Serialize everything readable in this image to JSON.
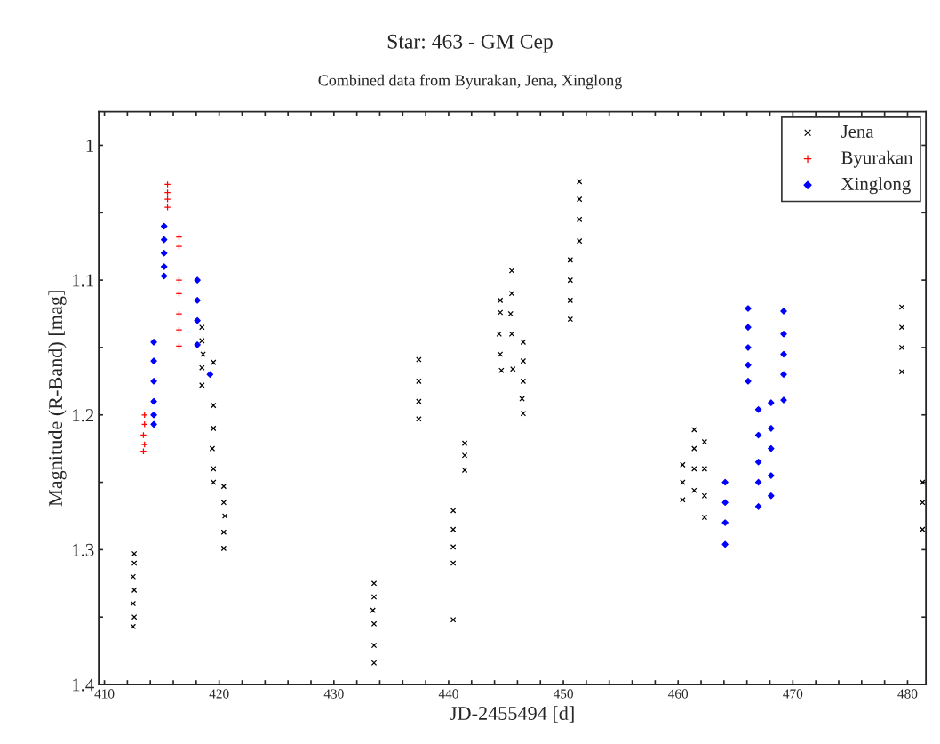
{
  "chart_data": {
    "type": "scatter",
    "title": "Star: 463 - GM Cep",
    "subtitle": "Combined data from Byurakan, Jena, Xinglong",
    "xlabel": "JD-2455494 [d]",
    "ylabel": "Magnitude (R-Band) [mag]",
    "xlim": [
      409.5,
      481.6
    ],
    "ylim": [
      1.4,
      0.975
    ],
    "xticks": [
      410,
      {
        "value": 412,
        "label": null
      },
      {
        "value": 414,
        "label": null
      },
      {
        "value": 416,
        "label": null
      },
      {
        "value": 418,
        "label": null
      },
      420,
      {
        "value": 422,
        "label": null
      },
      {
        "value": 424,
        "label": null
      },
      {
        "value": 426,
        "label": null
      },
      {
        "value": 428,
        "label": null
      },
      430,
      {
        "value": 432,
        "label": null
      },
      {
        "value": 434,
        "label": null
      },
      {
        "value": 436,
        "label": null
      },
      {
        "value": 438,
        "label": null
      },
      440,
      {
        "value": 442,
        "label": null
      },
      {
        "value": 444,
        "label": null
      },
      {
        "value": 446,
        "label": null
      },
      {
        "value": 448,
        "label": null
      },
      450,
      {
        "value": 452,
        "label": null
      },
      {
        "value": 454,
        "label": null
      },
      {
        "value": 456,
        "label": null
      },
      {
        "value": 458,
        "label": null
      },
      460,
      {
        "value": 462,
        "label": null
      },
      {
        "value": 464,
        "label": null
      },
      {
        "value": 466,
        "label": null
      },
      {
        "value": 468,
        "label": null
      },
      470,
      {
        "value": 472,
        "label": null
      },
      {
        "value": 474,
        "label": null
      },
      {
        "value": 476,
        "label": null
      },
      {
        "value": 478,
        "label": null
      },
      480
    ],
    "yticks": [
      1,
      {
        "value": 1.05,
        "label": null
      },
      1.1,
      {
        "value": 1.15,
        "label": null
      },
      1.2,
      {
        "value": 1.25,
        "label": null
      },
      1.3,
      {
        "value": 1.35,
        "label": null
      },
      1.4
    ],
    "grid": false,
    "legend": "top right",
    "series": [
      {
        "name": "Jena",
        "color": "#000000",
        "marker": "cross",
        "x": [
          412.6,
          412.6,
          412.5,
          412.6,
          412.5,
          412.6,
          412.5,
          418.5,
          418.5,
          418.6,
          418.5,
          418.5,
          419.5,
          419.5,
          419.5,
          419.4,
          419.5,
          419.5,
          420.4,
          420.4,
          420.5,
          420.4,
          420.4,
          433.5,
          433.5,
          433.4,
          433.5,
          433.5,
          433.5,
          437.4,
          437.4,
          437.4,
          437.4,
          440.4,
          440.4,
          440.4,
          440.4,
          440.4,
          441.4,
          441.4,
          441.4,
          444.5,
          444.5,
          444.4,
          444.5,
          444.6,
          445.5,
          445.5,
          445.4,
          445.5,
          445.6,
          446.5,
          446.5,
          446.5,
          446.4,
          446.5,
          450.6,
          450.6,
          450.6,
          450.6,
          451.4,
          451.4,
          451.4,
          451.4,
          460.4,
          460.4,
          460.4,
          461.4,
          461.4,
          461.4,
          461.4,
          462.3,
          462.3,
          462.3,
          462.3,
          479.5,
          479.5,
          479.5,
          479.5,
          481.3,
          481.3,
          481.3
        ],
        "values": [
          1.303,
          1.31,
          1.32,
          1.33,
          1.34,
          1.35,
          1.357,
          1.135,
          1.145,
          1.155,
          1.165,
          1.178,
          1.161,
          1.193,
          1.21,
          1.225,
          1.24,
          1.25,
          1.253,
          1.265,
          1.275,
          1.287,
          1.299,
          1.325,
          1.335,
          1.345,
          1.355,
          1.371,
          1.384,
          1.159,
          1.175,
          1.19,
          1.203,
          1.271,
          1.285,
          1.298,
          1.31,
          1.352,
          1.221,
          1.23,
          1.241,
          1.115,
          1.124,
          1.14,
          1.155,
          1.167,
          1.093,
          1.11,
          1.125,
          1.14,
          1.166,
          1.146,
          1.16,
          1.175,
          1.188,
          1.199,
          1.085,
          1.1,
          1.115,
          1.129,
          1.027,
          1.04,
          1.055,
          1.071,
          1.237,
          1.25,
          1.263,
          1.211,
          1.225,
          1.24,
          1.256,
          1.22,
          1.24,
          1.26,
          1.276,
          1.12,
          1.135,
          1.15,
          1.168,
          1.25,
          1.265,
          1.285
        ]
      },
      {
        "name": "Byurakan",
        "color": "#ff0000",
        "marker": "plus",
        "x": [
          415.5,
          415.5,
          415.5,
          415.5,
          416.5,
          416.5,
          416.5,
          416.5,
          416.5,
          416.5,
          416.5,
          413.5,
          413.5,
          413.4,
          413.5,
          413.4
        ],
        "values": [
          1.029,
          1.035,
          1.04,
          1.046,
          1.068,
          1.075,
          1.1,
          1.11,
          1.125,
          1.137,
          1.149,
          1.2,
          1.207,
          1.215,
          1.222,
          1.227
        ]
      },
      {
        "name": "Xinglong",
        "color": "#0000ff",
        "marker": "diamond",
        "x": [
          415.2,
          415.2,
          415.2,
          415.2,
          415.2,
          414.3,
          414.3,
          414.3,
          414.3,
          414.3,
          414.3,
          418.1,
          418.1,
          418.1,
          418.1,
          419.2,
          466.1,
          466.1,
          466.1,
          466.1,
          466.1,
          469.2,
          469.2,
          469.2,
          469.2,
          469.2,
          467.0,
          467.0,
          467.0,
          467.0,
          467.0,
          468.1,
          468.1,
          468.1,
          468.1,
          468.1,
          464.1,
          464.1,
          464.1,
          464.1
        ],
        "values": [
          1.06,
          1.07,
          1.08,
          1.09,
          1.097,
          1.146,
          1.16,
          1.175,
          1.19,
          1.2,
          1.207,
          1.1,
          1.115,
          1.13,
          1.148,
          1.17,
          1.121,
          1.135,
          1.15,
          1.163,
          1.175,
          1.123,
          1.14,
          1.155,
          1.17,
          1.189,
          1.196,
          1.215,
          1.235,
          1.25,
          1.268,
          1.191,
          1.21,
          1.225,
          1.245,
          1.26,
          1.25,
          1.265,
          1.28,
          1.296
        ]
      }
    ]
  }
}
